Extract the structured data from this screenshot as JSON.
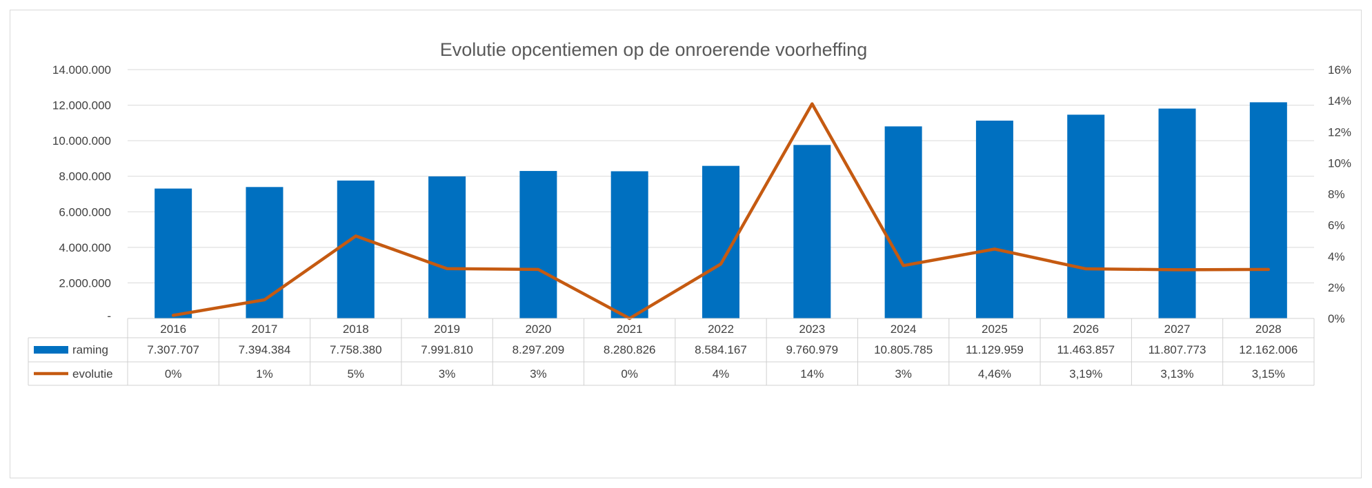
{
  "chart_data": {
    "type": "bar",
    "title": "Evolutie opcentiemen op de onroerende voorheffing",
    "categories": [
      "2016",
      "2017",
      "2018",
      "2019",
      "2020",
      "2021",
      "2022",
      "2023",
      "2024",
      "2025",
      "2026",
      "2027",
      "2028"
    ],
    "series": [
      {
        "name": "raming",
        "type": "bar",
        "axis": "left",
        "color": "#0070c0",
        "values": [
          7307707,
          7394384,
          7758380,
          7991810,
          8297209,
          8280826,
          8584167,
          9760979,
          10805785,
          11129959,
          11463857,
          11807773,
          12162006
        ],
        "labels": [
          "7.307.707",
          "7.394.384",
          "7.758.380",
          "7.991.810",
          "8.297.209",
          "8.280.826",
          "8.584.167",
          "9.760.979",
          "10.805.785",
          "11.129.959",
          "11.463.857",
          "11.807.773",
          "12.162.006"
        ]
      },
      {
        "name": "evolutie",
        "type": "line",
        "axis": "right",
        "color": "#c55a11",
        "values": [
          0.2,
          1.2,
          5.3,
          3.2,
          3.15,
          0.0,
          3.5,
          13.8,
          3.4,
          4.46,
          3.19,
          3.13,
          3.15
        ],
        "labels": [
          "0%",
          "1%",
          "5%",
          "3%",
          "3%",
          "0%",
          "4%",
          "14%",
          "3%",
          "4,46%",
          "3,19%",
          "3,13%",
          "3,15%"
        ]
      }
    ],
    "y_left": {
      "ylim": [
        0,
        14000000
      ],
      "ticks": [
        0,
        2000000,
        4000000,
        6000000,
        8000000,
        10000000,
        12000000,
        14000000
      ],
      "tick_labels": [
        "-",
        "2.000.000",
        "4.000.000",
        "6.000.000",
        "8.000.000",
        "10.000.000",
        "12.000.000",
        "14.000.000"
      ]
    },
    "y_right": {
      "ylim": [
        0,
        16
      ],
      "ticks": [
        0,
        2,
        4,
        6,
        8,
        10,
        12,
        14,
        16
      ],
      "tick_labels": [
        "0%",
        "2%",
        "4%",
        "6%",
        "8%",
        "10%",
        "12%",
        "14%",
        "16%"
      ]
    },
    "grid": true,
    "legend": "data-table"
  }
}
